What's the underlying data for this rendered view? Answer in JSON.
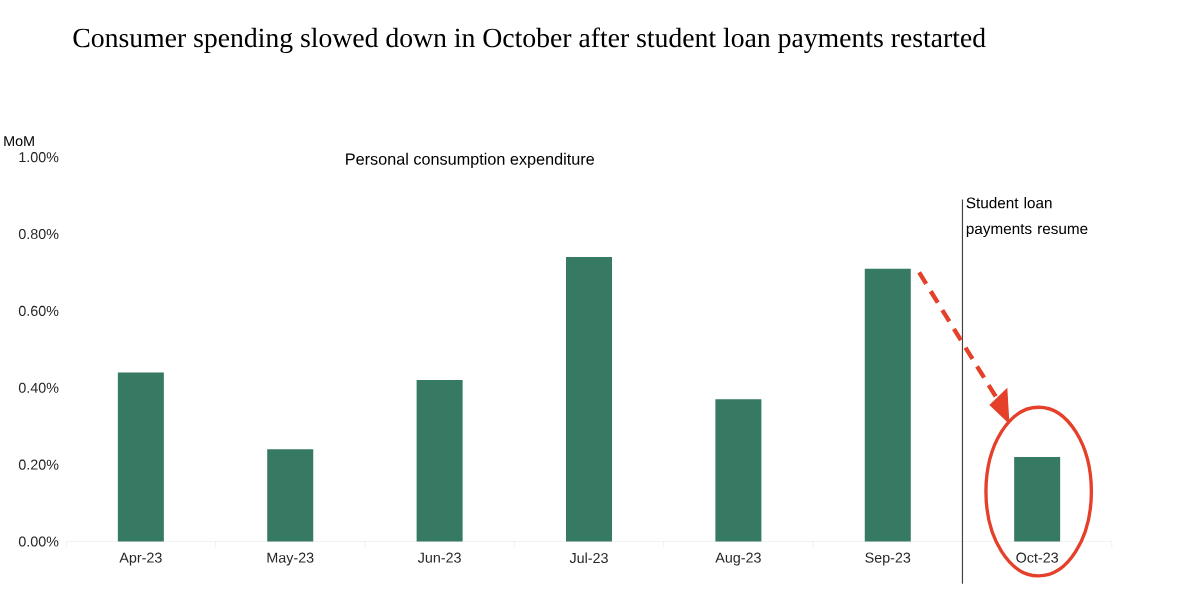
{
  "chart_data": {
    "type": "bar",
    "title": "Consumer spending slowed down in October after student loan payments restarted",
    "subtitle": "Personal consumption expenditure",
    "ylabel": "MoM",
    "categories": [
      "Apr-23",
      "May-23",
      "Jun-23",
      "Jul-23",
      "Aug-23",
      "Sep-23",
      "Oct-23"
    ],
    "values": [
      0.44,
      0.24,
      0.42,
      0.74,
      0.37,
      0.71,
      0.22
    ],
    "color": "#367a63",
    "ylim": [
      0,
      1
    ],
    "yticks": [
      {
        "value": 0,
        "label": "0.00%"
      },
      {
        "value": 0.2,
        "label": "0.20%"
      },
      {
        "value": 0.4,
        "label": "0.40%"
      },
      {
        "value": 0.6,
        "label": "0.60%"
      },
      {
        "value": 0.8,
        "label": "0.80%"
      },
      {
        "value": 1,
        "label": "1.00%"
      }
    ],
    "annotations": [
      "Student loan payments resume"
    ],
    "grid": false
  }
}
